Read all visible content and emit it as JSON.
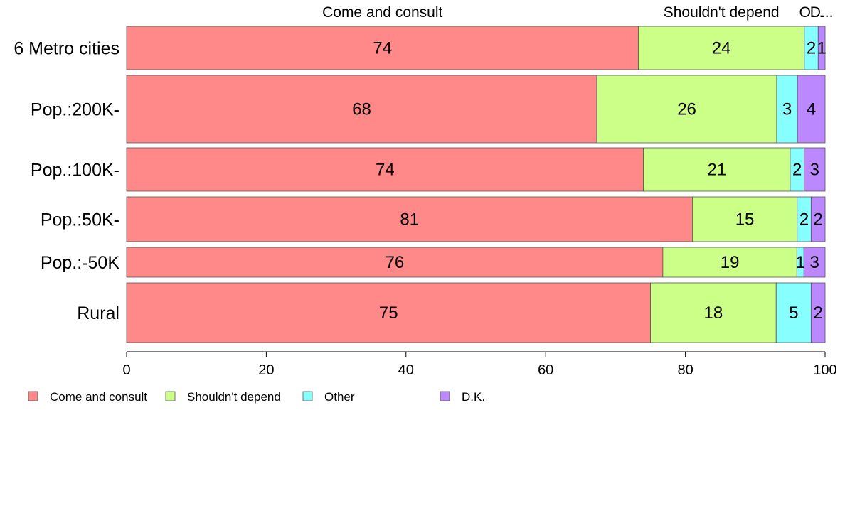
{
  "chart_data": {
    "type": "bar",
    "orientation": "horizontal",
    "stacked": true,
    "categories": [
      "6 Metro cities",
      "Pop.:200K-",
      "Pop.:100K-",
      "Pop.:50K-",
      "Pop.:-50K",
      "Rural"
    ],
    "series": [
      {
        "name": "Come and consult",
        "color": "#FF8888",
        "values": [
          74,
          68,
          74,
          81,
          76,
          75
        ],
        "labels": [
          "74",
          "68",
          "74",
          "81",
          "76",
          "75"
        ]
      },
      {
        "name": "Shouldn't depend",
        "color": "#CCFF88",
        "values": [
          24,
          26,
          21,
          15,
          19,
          18
        ],
        "labels": [
          "24",
          "26",
          "21",
          "15",
          "19",
          "18"
        ]
      },
      {
        "name": "Other",
        "color": "#88FFFF",
        "values": [
          2,
          3,
          2,
          2,
          1,
          5
        ],
        "labels": [
          "2",
          "3",
          "2",
          "2",
          "1",
          "5"
        ]
      },
      {
        "name": "D.K.",
        "color": "#BB88FF",
        "values": [
          1,
          4,
          3,
          2,
          3,
          2
        ],
        "labels": [
          "1",
          "4",
          "3",
          "2",
          "3",
          "2"
        ]
      }
    ],
    "top_labels": [
      "Come and consult",
      "Shouldn't depend",
      "O...",
      "D..."
    ],
    "xlim": [
      0,
      100
    ],
    "xticks": [
      0,
      20,
      40,
      60,
      80,
      100
    ],
    "xtick_labels": [
      "0",
      "20",
      "40",
      "60",
      "80",
      "100"
    ],
    "legend": {
      "position": "bottom-left",
      "entries": [
        "Come and consult",
        "Shouldn't depend",
        "Other",
        "D.K."
      ]
    },
    "grid": false
  }
}
